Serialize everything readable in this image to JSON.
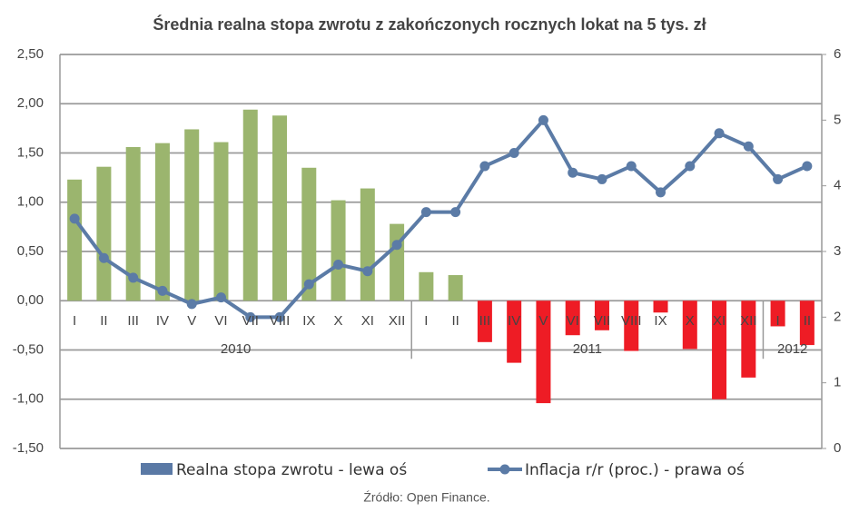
{
  "chart_data": {
    "type": "bar",
    "title": "Średnia realna stopa zwrotu z zakończonych rocznych lokat na 5 tys. zł",
    "source": "Źródło: Open Finance.",
    "categories": [
      "I",
      "II",
      "III",
      "IV",
      "V",
      "VI",
      "VII",
      "VIII",
      "IX",
      "X",
      "XI",
      "XII",
      "I",
      "II",
      "III",
      "IV",
      "V",
      "VI",
      "VII",
      "VIII",
      "IX",
      "X",
      "XI",
      "XII",
      "I",
      "II"
    ],
    "year_groups": [
      {
        "label": "2010",
        "count": 12
      },
      {
        "label": "2011",
        "count": 12
      },
      {
        "label": "2012",
        "count": 2
      }
    ],
    "series": [
      {
        "name": "Realna stopa zwrotu - lewa oś",
        "type": "bar",
        "color": "#5a79a5",
        "bar_colors": {
          "positive": "#9bb56e",
          "negative": "#ee1c25"
        },
        "values": [
          1.23,
          1.36,
          1.56,
          1.6,
          1.74,
          1.61,
          1.94,
          1.88,
          1.35,
          1.02,
          1.14,
          0.78,
          0.29,
          0.26,
          -0.42,
          -0.63,
          -1.04,
          -0.35,
          -0.3,
          -0.51,
          -0.12,
          -0.49,
          -1.0,
          -0.78,
          -0.26,
          -0.45
        ]
      },
      {
        "name": "Inflacja r/r (proc.) - prawa oś",
        "type": "line",
        "axis": "y2",
        "color": "#5b7ba6",
        "values": [
          3.5,
          2.9,
          2.6,
          2.4,
          2.2,
          2.3,
          2.0,
          2.0,
          2.5,
          2.8,
          2.7,
          3.1,
          3.6,
          3.6,
          4.3,
          4.5,
          5.0,
          4.2,
          4.1,
          4.3,
          3.9,
          4.3,
          4.8,
          4.6,
          4.1,
          4.3
        ]
      }
    ],
    "ylim": [
      -1.5,
      2.5
    ],
    "yticks": [
      {
        "value": -1.5,
        "label": "-1,50"
      },
      {
        "value": -1,
        "label": "-1,00"
      },
      {
        "value": -0.5,
        "label": "-0,50"
      },
      {
        "value": 0,
        "label": "0,00"
      },
      {
        "value": 0.5,
        "label": "0,50"
      },
      {
        "value": 1,
        "label": "1,00"
      },
      {
        "value": 1.5,
        "label": "1,50"
      },
      {
        "value": 2,
        "label": "2,00"
      },
      {
        "value": 2.5,
        "label": "2,50"
      }
    ],
    "y2lim": [
      0,
      6
    ],
    "y2ticks": [
      0,
      1,
      2,
      3,
      4,
      5,
      6
    ],
    "grid": true
  }
}
